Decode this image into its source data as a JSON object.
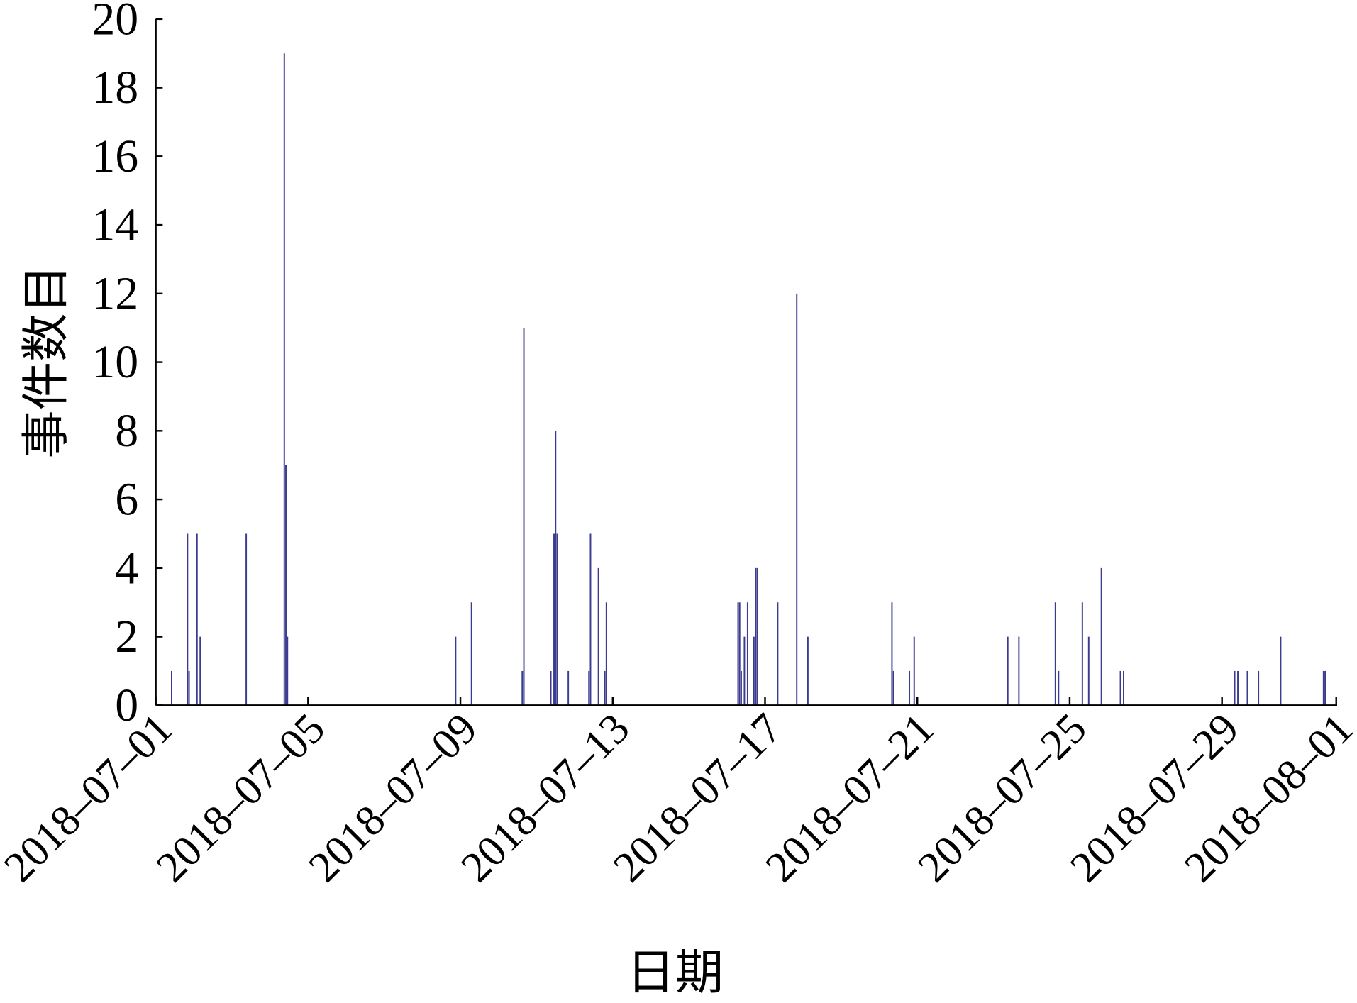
{
  "chart_data": {
    "type": "bar",
    "xlabel": "日期",
    "ylabel": "事件数目",
    "xlim": [
      "2018-07-01",
      "2018-08-01"
    ],
    "ylim": [
      0,
      20
    ],
    "grid": false,
    "bar_color": "#3b3b8f",
    "axis_color": "#000000",
    "x_tick_labels": [
      "2018–07–01",
      "2018–07–05",
      "2018–07–09",
      "2018–07–13",
      "2018–07–17",
      "2018–07–21",
      "2018–07–25",
      "2018–07–29",
      "2018–08–01"
    ],
    "y_ticks": [
      0,
      2,
      4,
      6,
      8,
      10,
      12,
      14,
      16,
      18,
      20
    ],
    "x": [
      "2018-07-01 10:00",
      "2018-07-01 20:00",
      "2018-07-01 21:00",
      "2018-07-02 02:00",
      "2018-07-02 04:00",
      "2018-07-03 09:00",
      "2018-07-04 09:00",
      "2018-07-04 10:00",
      "2018-07-04 11:00",
      "2018-07-08 21:00",
      "2018-07-09 07:00",
      "2018-07-10 15:00",
      "2018-07-10 16:00",
      "2018-07-11 09:00",
      "2018-07-11 11:00",
      "2018-07-11 12:00",
      "2018-07-11 13:00",
      "2018-07-11 20:00",
      "2018-07-12 09:00",
      "2018-07-12 10:00",
      "2018-07-12 15:00",
      "2018-07-12 19:00",
      "2018-07-12 20:00",
      "2018-07-16 07:00",
      "2018-07-16 08:00",
      "2018-07-16 09:00",
      "2018-07-16 11:00",
      "2018-07-16 13:00",
      "2018-07-16 17:00",
      "2018-07-16 18:00",
      "2018-07-16 19:00",
      "2018-07-17 08:00",
      "2018-07-17 20:00",
      "2018-07-18 03:00",
      "2018-07-20 08:00",
      "2018-07-20 09:00",
      "2018-07-20 19:00",
      "2018-07-20 22:00",
      "2018-07-23 09:00",
      "2018-07-23 16:00",
      "2018-07-24 15:00",
      "2018-07-24 17:00",
      "2018-07-25 08:00",
      "2018-07-25 12:00",
      "2018-07-25 20:00",
      "2018-07-26 08:00",
      "2018-07-26 10:00",
      "2018-07-29 08:00",
      "2018-07-29 10:00",
      "2018-07-29 16:00",
      "2018-07-29 23:00",
      "2018-07-30 13:00",
      "2018-07-31 16:00",
      "2018-07-31 17:00"
    ],
    "values": [
      1,
      5,
      1,
      5,
      2,
      5,
      19,
      7,
      2,
      2,
      3,
      1,
      11,
      1,
      5,
      8,
      5,
      1,
      1,
      5,
      4,
      1,
      3,
      3,
      3,
      1,
      2,
      3,
      2,
      4,
      4,
      3,
      12,
      2,
      3,
      1,
      1,
      2,
      2,
      2,
      3,
      1,
      3,
      2,
      4,
      1,
      1,
      1,
      1,
      1,
      1,
      2,
      1,
      1
    ]
  }
}
